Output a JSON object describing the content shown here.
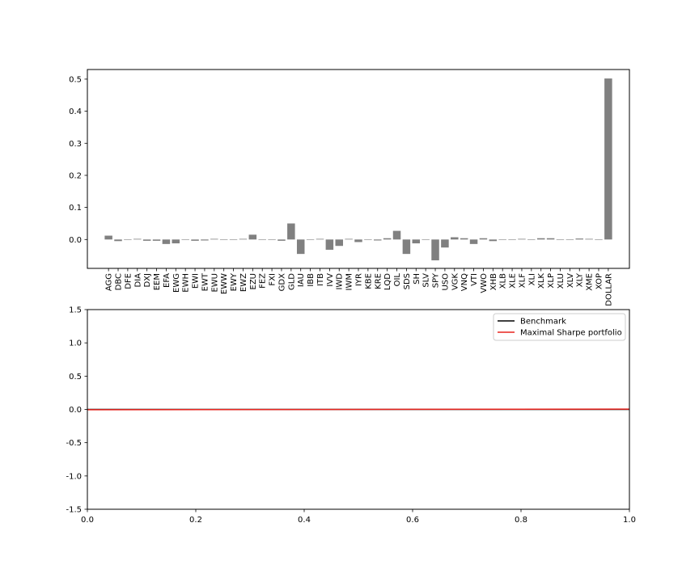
{
  "chart_data": [
    {
      "type": "bar",
      "title": "",
      "xlabel": "",
      "ylabel": "",
      "ylim": [
        -0.09,
        0.53
      ],
      "yticks": [
        0.0,
        0.1,
        0.2,
        0.3,
        0.4,
        0.5
      ],
      "ytick_labels": [
        "0.0",
        "0.1",
        "0.2",
        "0.3",
        "0.4",
        "0.5"
      ],
      "bar_color": "#808080",
      "categories": [
        "AGG",
        "DBC",
        "DFE",
        "DIA",
        "DXJ",
        "EEM",
        "EFA",
        "EWG",
        "EWH",
        "EWI",
        "EWT",
        "EWU",
        "EWW",
        "EWY",
        "EWZ",
        "EZU",
        "FEZ",
        "FXI",
        "GDX",
        "GLD",
        "IAU",
        "IBB",
        "ITB",
        "IVV",
        "IWD",
        "IWM",
        "IYR",
        "KBE",
        "KRE",
        "LQD",
        "OIL",
        "SDS",
        "SH",
        "SLV",
        "SPY",
        "USO",
        "VGK",
        "VNQ",
        "VTI",
        "VWO",
        "XHB",
        "XLB",
        "XLE",
        "XLF",
        "XLI",
        "XLK",
        "XLP",
        "XLU",
        "XLV",
        "XLY",
        "XME",
        "XOP",
        "DOLLAR"
      ],
      "values": [
        0.012,
        -0.005,
        0.0,
        0.002,
        -0.004,
        -0.004,
        -0.014,
        -0.012,
        0.0,
        -0.004,
        -0.003,
        0.002,
        0.0,
        0.0,
        0.002,
        0.015,
        0.0,
        0.0,
        -0.004,
        0.05,
        -0.045,
        0.0,
        0.002,
        -0.032,
        -0.02,
        0.002,
        -0.008,
        0.0,
        -0.003,
        0.004,
        0.027,
        -0.045,
        -0.012,
        0.0,
        -0.065,
        -0.025,
        0.007,
        0.004,
        -0.014,
        0.004,
        -0.005,
        0.0,
        0.0,
        0.002,
        0.0,
        0.004,
        0.004,
        0.0,
        0.0,
        0.003,
        0.002,
        0.0,
        0.502
      ]
    },
    {
      "type": "line",
      "title": "",
      "xlabel": "",
      "ylabel": "",
      "xlim": [
        0.0,
        1.0
      ],
      "ylim": [
        -1.5,
        1.5
      ],
      "xticks": [
        0.0,
        0.2,
        0.4,
        0.6,
        0.8,
        1.0
      ],
      "xtick_labels": [
        "0.0",
        "0.2",
        "0.4",
        "0.6",
        "0.8",
        "1.0"
      ],
      "yticks": [
        -1.5,
        -1.0,
        -0.5,
        0.0,
        0.5,
        1.0,
        1.5
      ],
      "ytick_labels": [
        "-1.5",
        "-1.0",
        "-0.5",
        "0.0",
        "0.5",
        "1.0",
        "1.5"
      ],
      "legend_position": "top-right",
      "series": [
        {
          "name": "Benchmark",
          "color": "#000000",
          "x": [
            0.0,
            1.0
          ],
          "y": [
            0.0,
            0.0
          ]
        },
        {
          "name": "Maximal Sharpe portfolio",
          "color": "#e8251f",
          "x": [
            0.0,
            1.0
          ],
          "y": [
            -0.005,
            0.005
          ]
        }
      ]
    }
  ]
}
